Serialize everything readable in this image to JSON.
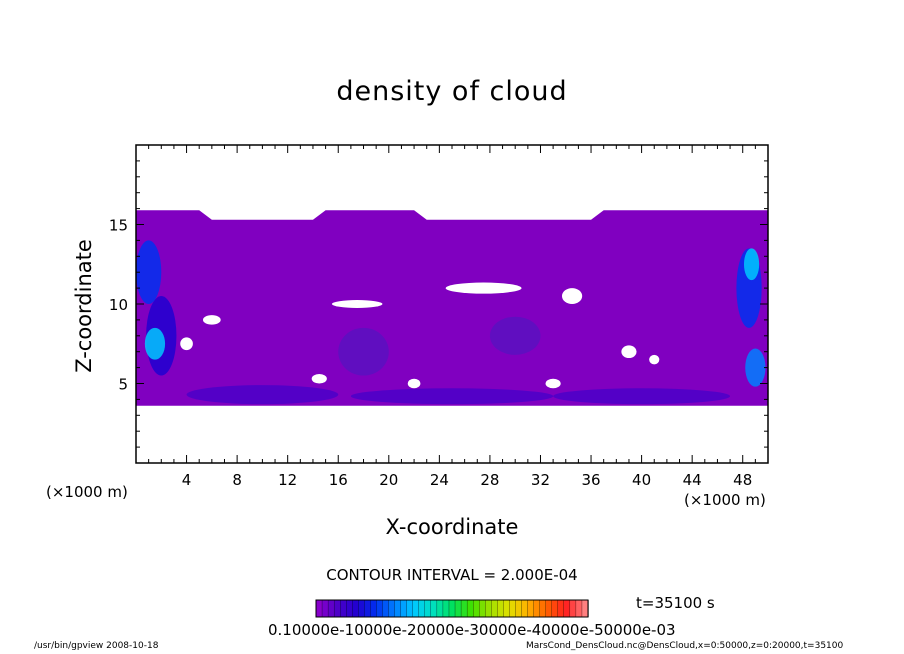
{
  "chart_data": {
    "type": "heatmap",
    "title": "density of cloud",
    "xlabel": "X-coordinate",
    "ylabel": "Z-coordinate",
    "x_unit_left": "(×1000 m)",
    "x_unit_right": "(×1000 m)",
    "xlim": [
      0,
      50
    ],
    "ylim": [
      0,
      20
    ],
    "x_ticks": [
      4,
      8,
      12,
      16,
      20,
      24,
      28,
      32,
      36,
      40,
      44,
      48
    ],
    "y_ticks": [
      5,
      10,
      15
    ],
    "field_extent": {
      "z_bottom": 3.6,
      "z_top_center": 15.3,
      "z_top_edges": 15.9
    },
    "dominant_color": "#8000c0",
    "contour_interval": "CONTOUR INTERVAL = 2.000E-04",
    "time_label": "t=35100 s",
    "colorbar_labels_text": "0.10000e-10000e-20000e-30000e-40000e-50000e-03",
    "colorbar_colors": [
      "#8800cc",
      "#4b00c8",
      "#2000d0",
      "#0030f0",
      "#0080ff",
      "#00c8ff",
      "#00e0c0",
      "#00e060",
      "#40e000",
      "#a0e000",
      "#e0e000",
      "#ffb000",
      "#ff6000",
      "#ff2020",
      "#ff8080"
    ]
  },
  "footer": {
    "left": "/usr/bin/gpview  2008-10-18",
    "right": "MarsCond_DensCloud.nc@DensCloud,x=0:50000,z=0:20000,t=35100"
  }
}
